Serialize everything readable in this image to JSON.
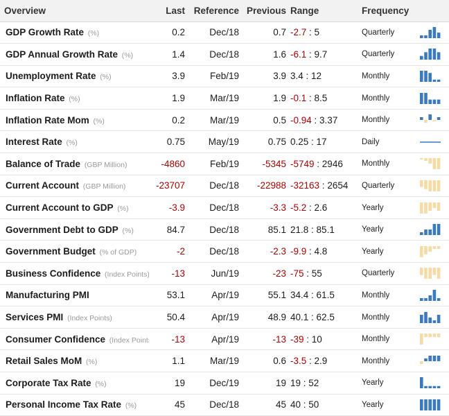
{
  "header": {
    "overview": "Overview",
    "last": "Last",
    "reference": "Reference",
    "previous": "Previous",
    "range": "Range",
    "frequency": "Frequency"
  },
  "colors": {
    "pos": "#3a7abf",
    "neg": "#f5dca6",
    "line": "#3a7abf",
    "negText": "#b00000"
  },
  "rows": [
    {
      "name": "GDP Growth Rate",
      "unit": "(%)",
      "last": "0.2",
      "ref": "Dec/18",
      "prev": "0.7",
      "range_lo": "-2.7",
      "range_hi": "5",
      "freq": "Quarterly",
      "spark": [
        1,
        1,
        3,
        4,
        2
      ]
    },
    {
      "name": "GDP Annual Growth Rate",
      "unit": "(%)",
      "last": "1.4",
      "ref": "Dec/18",
      "prev": "1.6",
      "range_lo": "-6.1",
      "range_hi": "9.7",
      "freq": "Quarterly",
      "spark": [
        1,
        2,
        3,
        3,
        2
      ]
    },
    {
      "name": "Unemployment Rate",
      "unit": "(%)",
      "last": "3.9",
      "ref": "Feb/19",
      "prev": "3.9",
      "range_lo": "3.4",
      "range_hi": "12",
      "freq": "Monthly",
      "spark": [
        5,
        5,
        4,
        1,
        1
      ]
    },
    {
      "name": "Inflation Rate",
      "unit": "(%)",
      "last": "1.9",
      "ref": "Mar/19",
      "prev": "1.9",
      "range_lo": "-0.1",
      "range_hi": "8.5",
      "freq": "Monthly",
      "spark": [
        5,
        5,
        2,
        2,
        2
      ]
    },
    {
      "name": "Inflation Rate Mom",
      "unit": "(%)",
      "last": "0.2",
      "ref": "Mar/19",
      "prev": "0.5",
      "range_lo": "-0.94",
      "range_hi": "3.37",
      "freq": "Monthly",
      "spark": [
        1,
        -1,
        2,
        -0.5,
        1
      ]
    },
    {
      "name": "Interest Rate",
      "unit": "(%)",
      "last": "0.75",
      "ref": "May/19",
      "prev": "0.75",
      "range_lo": "0.25",
      "range_hi": "17",
      "freq": "Daily",
      "spark": []
    },
    {
      "name": "Balance of Trade",
      "unit": "(GBP Million)",
      "last": "-4860",
      "ref": "Feb/19",
      "prev": "-5345",
      "range_lo": "-5749",
      "range_hi": "2946",
      "freq": "Monthly",
      "spark": [
        -0.5,
        -1,
        -2,
        -4,
        -4
      ]
    },
    {
      "name": "Current Account",
      "unit": "(GBP Million)",
      "last": "-23707",
      "ref": "Dec/18",
      "prev": "-22988",
      "range_lo": "-32163",
      "range_hi": "2654",
      "freq": "Quarterly",
      "spark": [
        -3,
        -4,
        -5,
        -5,
        -5
      ]
    },
    {
      "name": "Current Account to GDP",
      "unit": "(%)",
      "last": "-3.9",
      "ref": "Dec/18",
      "prev": "-3.3",
      "range_lo": "-5.2",
      "range_hi": "2.6",
      "freq": "Yearly",
      "spark": [
        -4,
        -4,
        -3,
        -2,
        -3
      ]
    },
    {
      "name": "Government Debt to GDP",
      "unit": "(%)",
      "last": "84.7",
      "ref": "Dec/18",
      "prev": "85.1",
      "range_lo": "21.8",
      "range_hi": "85.1",
      "freq": "Yearly",
      "spark": [
        1,
        2,
        2,
        4,
        4
      ]
    },
    {
      "name": "Government Budget",
      "unit": "(% of GDP)",
      "last": "-2",
      "ref": "Dec/18",
      "prev": "-2.3",
      "range_lo": "-9.9",
      "range_hi": "4.8",
      "freq": "Yearly",
      "spark": [
        -4,
        -3,
        -2,
        -1,
        -1
      ]
    },
    {
      "name": "Business Confidence",
      "unit": "(Index Points)",
      "last": "-13",
      "ref": "Jun/19",
      "prev": "-23",
      "range_lo": "-75",
      "range_hi": "55",
      "freq": "Quarterly",
      "spark": [
        -2,
        -3,
        -3,
        -2,
        -3
      ]
    },
    {
      "name": "Manufacturing PMI",
      "unit": "",
      "last": "53.1",
      "ref": "Apr/19",
      "prev": "55.1",
      "range_lo": "34.4",
      "range_hi": "61.5",
      "freq": "Monthly",
      "spark": [
        1,
        1,
        2,
        4,
        1
      ]
    },
    {
      "name": "Services PMI",
      "unit": "(Index Points)",
      "last": "50.4",
      "ref": "Apr/19",
      "prev": "48.9",
      "range_lo": "40.1",
      "range_hi": "62.5",
      "freq": "Monthly",
      "spark": [
        3,
        4,
        2,
        1,
        3
      ]
    },
    {
      "name": "Consumer Confidence",
      "unit": "(Index Points)",
      "last": "-13",
      "ref": "Apr/19",
      "prev": "-13",
      "range_lo": "-39",
      "range_hi": "10",
      "freq": "Monthly",
      "spark": [
        -3,
        -1,
        -1,
        -1,
        -1
      ]
    },
    {
      "name": "Retail Sales MoM",
      "unit": "(%)",
      "last": "1.1",
      "ref": "Mar/19",
      "prev": "0.6",
      "range_lo": "-3.5",
      "range_hi": "2.9",
      "freq": "Monthly",
      "spark": [
        -1,
        1,
        2,
        2,
        2
      ]
    },
    {
      "name": "Corporate Tax Rate",
      "unit": "(%)",
      "last": "19",
      "ref": "Dec/19",
      "prev": "19",
      "range_lo": "19",
      "range_hi": "52",
      "freq": "Yearly",
      "spark": [
        5,
        1,
        1,
        1,
        1
      ]
    },
    {
      "name": "Personal Income Tax Rate",
      "unit": "(%)",
      "last": "45",
      "ref": "Dec/18",
      "prev": "45",
      "range_lo": "40",
      "range_hi": "50",
      "freq": "Yearly",
      "spark": [
        2,
        2,
        2,
        2,
        2
      ]
    }
  ]
}
